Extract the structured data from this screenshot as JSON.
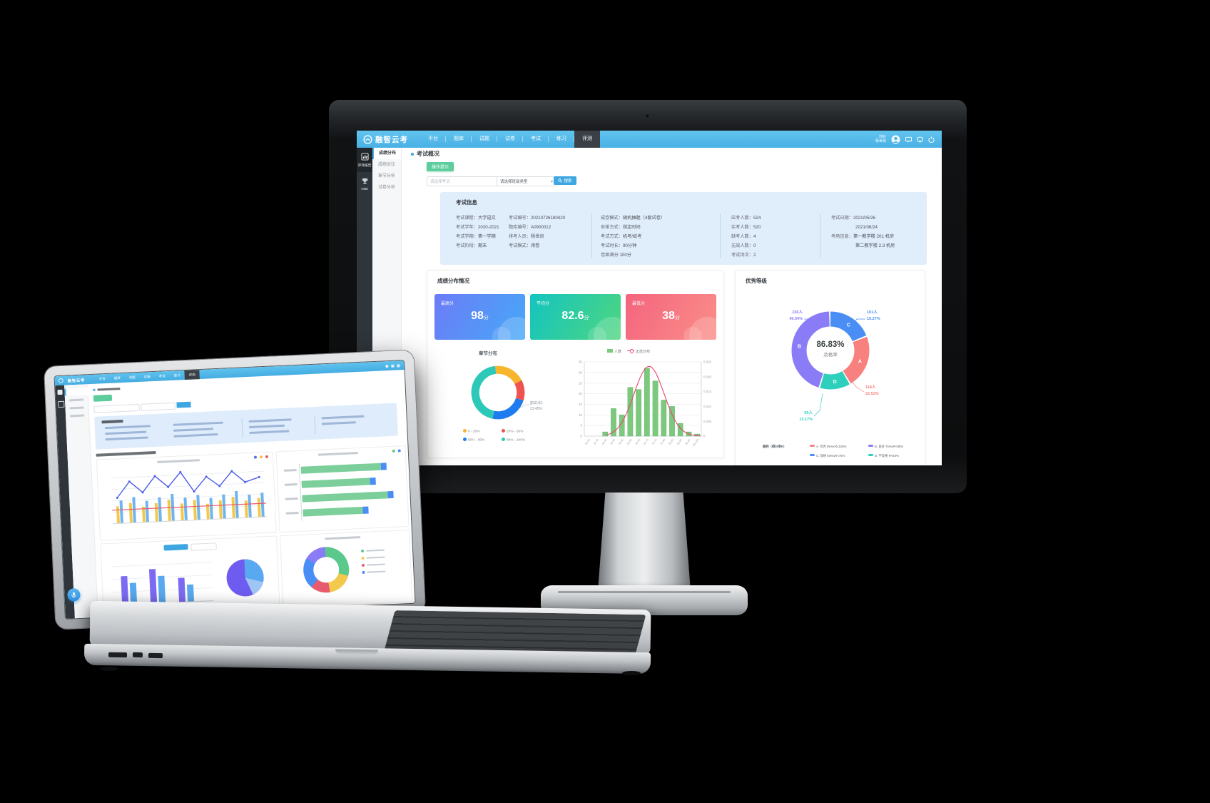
{
  "app": {
    "brand": {
      "logo_text": "融智云考"
    },
    "nav": {
      "items": [
        "平台",
        "题库",
        "试题",
        "试卷",
        "考试",
        "练习",
        "评测"
      ],
      "active": "评测"
    },
    "user": {
      "greeting": "你好",
      "name": "杨世剑"
    },
    "rail": [
      {
        "icon": "bar-chart-icon",
        "label": "评测报告",
        "active": true
      },
      {
        "icon": "trophy-icon",
        "label": "OBE",
        "active": false
      }
    ],
    "menu": {
      "items": [
        "成绩分布",
        "成绩对比",
        "章节分析",
        "试卷分析"
      ],
      "active": "成绩分布"
    },
    "page": {
      "title": "考试概况",
      "tip_button": "操作提示"
    },
    "search": {
      "exam_placeholder": "请选择考试",
      "class_select_value": "请选择班级类型",
      "button_label": "搜索"
    },
    "exam_info": {
      "title": "考试信息",
      "columns": [
        [
          {
            "label": "考试课程",
            "value": "大学语文"
          },
          {
            "label": "考试学年",
            "value": "2020-2021"
          },
          {
            "label": "考试学期",
            "value": "第一学期"
          },
          {
            "label": "考试阶段",
            "value": "期末"
          }
        ],
        [
          {
            "label": "考试编号",
            "value": "20210726180420"
          },
          {
            "label": "题库编号",
            "value": "A0900012"
          },
          {
            "label": "排考人员",
            "value": "杨世剑"
          },
          {
            "label": "考试模式",
            "value": "闭卷"
          }
        ],
        [
          {
            "label": "成卷模式",
            "value": "随机抽题（4套试卷）"
          },
          {
            "label": "安排方式",
            "value": "指定时间"
          },
          {
            "label": "考试方式",
            "value": "机考/纸考"
          },
          {
            "label": "考试时长",
            "value": "90分钟"
          },
          {
            "label": "卷面满分",
            "value": "100分"
          }
        ],
        [
          {
            "label": "应考人数",
            "value": "524"
          },
          {
            "label": "实考人数",
            "value": "520"
          },
          {
            "label": "缺考人数",
            "value": "4"
          },
          {
            "label": "无效人数",
            "value": "0"
          },
          {
            "label": "考试场次",
            "value": "2"
          }
        ],
        [
          {
            "label": "考试日期",
            "value": "2021/05/26",
            "value2": "2021/06/24"
          },
          {
            "label": "考场信息",
            "value": "第一教学楼 201 机房",
            "value2": "第二教学楼 2.3 机房"
          }
        ]
      ]
    },
    "score_section": {
      "title": "成绩分布情况",
      "cards": [
        {
          "label": "最高分",
          "value": "98",
          "unit": "分",
          "gradient": [
            "#6c7bf7",
            "#46a9f7"
          ]
        },
        {
          "label": "平均分",
          "value": "82.6",
          "unit": "分",
          "gradient": [
            "#13c4c0",
            "#4fd67f"
          ]
        },
        {
          "label": "最低分",
          "value": "38",
          "unit": "分",
          "gradient": [
            "#f4647f",
            "#fa8f88"
          ]
        }
      ]
    },
    "grade_section": {
      "title": "优秀等级",
      "legend_title": "图例（得分率R）"
    }
  },
  "laptop": {
    "brand": {
      "logo_text": "融智云考"
    }
  },
  "chart_data": [
    {
      "id": "chapter_donut",
      "type": "pie",
      "title": "章节分布",
      "donut": true,
      "segments": [
        {
          "label": "0 - 20%",
          "pct": 19.0,
          "color": "#f7b52c"
        },
        {
          "label": "20% - 50%",
          "pct": 12.55,
          "color": "#ef5350"
        },
        {
          "label": "50% - 80%",
          "pct": 23.45,
          "color": "#1f7cf0"
        },
        {
          "label": "80% - 100%",
          "pct": 45.0,
          "color": "#2cc9b8"
        }
      ],
      "annotation": {
        "text": "知识点1",
        "value": "23.45%"
      },
      "legend_position": "bottom"
    },
    {
      "id": "score_histogram",
      "type": "bar",
      "legend": [
        "人数",
        "正态分布"
      ],
      "categories": [
        "30-35",
        "35-40",
        "40-45",
        "45-50",
        "50-55",
        "55-60",
        "60-65",
        "65-70",
        "70-75",
        "75-80",
        "80-85",
        "85-90",
        "90-95",
        "95-100"
      ],
      "values": [
        0,
        0,
        2,
        13,
        10,
        23,
        22,
        32,
        26,
        17,
        14,
        6,
        2,
        1
      ],
      "ylim_left": [
        0,
        35
      ],
      "ylim_right": [
        0,
        0.025
      ],
      "bar_color": "#7cc87d",
      "curve_color": "#e5486c",
      "grid": true
    },
    {
      "id": "grade_donut",
      "type": "pie",
      "title": "优秀等级",
      "donut": true,
      "center_value": "86.83%",
      "center_label": "及格率",
      "segments": [
        {
          "grade": "C",
          "people": "101人",
          "pct_text": "19.27%",
          "pct": 19.27,
          "color": "#4a8df5",
          "legend": "C: 及格 60%≤R<75%"
        },
        {
          "grade": "A",
          "people": "118人",
          "pct_text": "22.52%",
          "pct": 22.52,
          "color": "#f8807f",
          "legend": "A: 优秀 85%≤R≤100%"
        },
        {
          "grade": "D",
          "people": "69人",
          "pct_text": "13.17%",
          "pct": 13.17,
          "color": "#2ed0bd",
          "legend": "D: 不及格 R<60%"
        },
        {
          "grade": "B",
          "people": "236人",
          "pct_text": "45.04%",
          "pct": 45.04,
          "color": "#8a7bf6",
          "legend": "B: 良好 75%≤R<85%"
        }
      ]
    }
  ]
}
